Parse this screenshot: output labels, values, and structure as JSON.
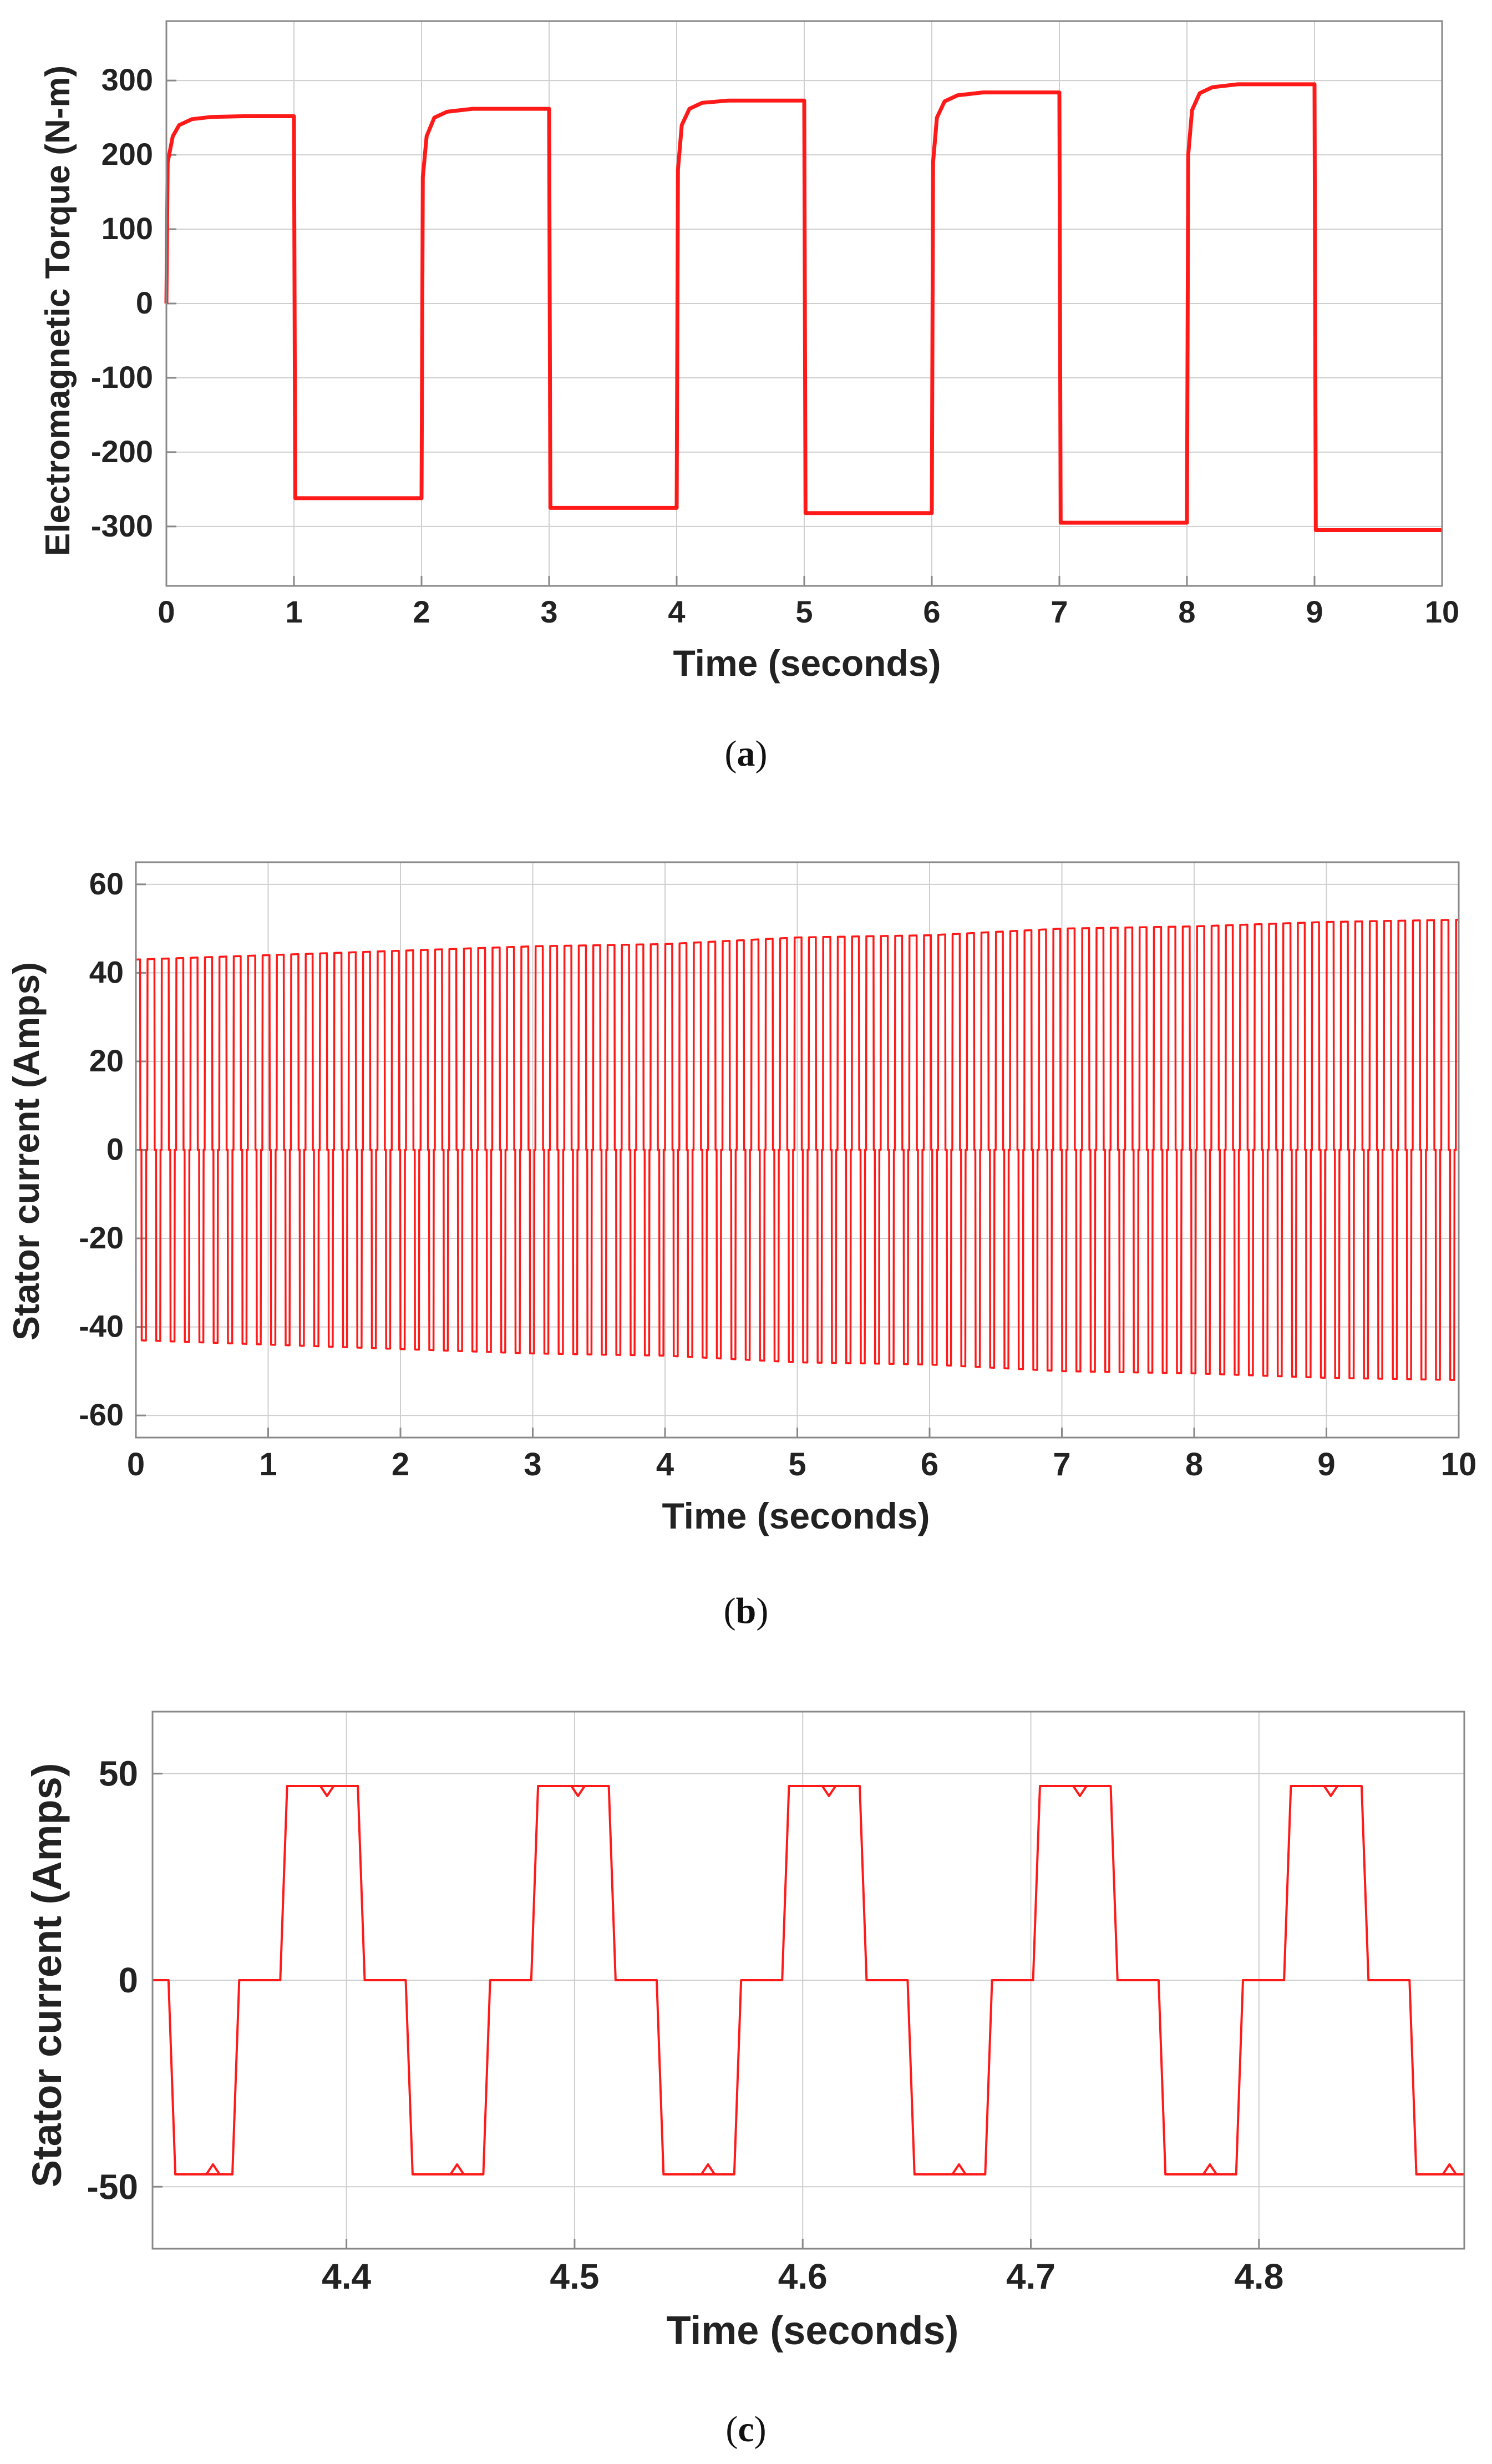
{
  "colors": {
    "trace": "#ff1a1a"
  },
  "chart_data": [
    {
      "type": "line",
      "caption_letter": "a",
      "xlabel": "Time (seconds)",
      "ylabel": "Electromagnetic Torque (N-m)",
      "xlim": [
        0,
        10
      ],
      "ylim": [
        -380,
        380
      ],
      "xticks": [
        0,
        1,
        2,
        3,
        4,
        5,
        6,
        7,
        8,
        9,
        10
      ],
      "yticks": [
        300,
        200,
        100,
        0,
        -100,
        -200,
        -300
      ],
      "grid": true,
      "series": [
        {
          "name": "Electromagnetic Torque",
          "x": [
            0,
            0.01,
            0.05,
            0.1,
            0.2,
            0.35,
            0.6,
            1.0,
            1.01,
            2.0,
            2.01,
            2.04,
            2.1,
            2.2,
            2.4,
            3.0,
            3.01,
            4.0,
            4.01,
            4.04,
            4.1,
            4.2,
            4.4,
            5.0,
            5.01,
            6.0,
            6.01,
            6.04,
            6.1,
            6.2,
            6.4,
            7.0,
            7.01,
            8.0,
            8.01,
            8.04,
            8.1,
            8.2,
            8.4,
            9.0,
            9.01,
            10.0
          ],
          "y": [
            0,
            190,
            225,
            240,
            248,
            251,
            252,
            252,
            -262,
            -262,
            170,
            225,
            250,
            258,
            262,
            262,
            -275,
            -275,
            180,
            240,
            262,
            270,
            273,
            273,
            -282,
            -282,
            190,
            250,
            272,
            280,
            284,
            284,
            -295,
            -295,
            200,
            260,
            283,
            291,
            295,
            295,
            -305,
            -305
          ]
        }
      ]
    },
    {
      "type": "line",
      "caption_letter": "b",
      "xlabel": "Time (seconds)",
      "ylabel": "Stator current (Amps)",
      "xlim": [
        0,
        10
      ],
      "ylim": [
        -65,
        65
      ],
      "xticks": [
        0,
        1,
        2,
        3,
        4,
        5,
        6,
        7,
        8,
        9,
        10
      ],
      "yticks": [
        60,
        40,
        20,
        0,
        -20,
        -40,
        -60
      ],
      "grid": true,
      "waveform": "six-step quasi-square",
      "frequency_hz": 9.2,
      "series": [
        {
          "name": "Stator current",
          "x": [
            0,
            1,
            2,
            3,
            4,
            5,
            6,
            7,
            8,
            9,
            10
          ],
          "y_amplitude": [
            43,
            44,
            45,
            46,
            46.5,
            48,
            48.5,
            50,
            50.5,
            51.5,
            52
          ]
        }
      ]
    },
    {
      "type": "line",
      "caption_letter": "c",
      "xlabel": "Time (seconds)",
      "ylabel": "Stator current (Amps)",
      "xlim": [
        4.315,
        4.89
      ],
      "ylim": [
        -65,
        65
      ],
      "xticks": [
        "4.4",
        "4.5",
        "4.6",
        "4.7",
        "4.8"
      ],
      "yticks": [
        "50",
        "0",
        "-50"
      ],
      "grid": true,
      "waveform": "six-step quasi-square",
      "period_s": 0.1095,
      "amplitude": 47,
      "series": [
        {
          "name": "Stator current",
          "x": [
            4.315,
            4.322,
            4.325,
            4.35,
            4.353,
            4.371,
            4.374,
            4.405,
            4.408,
            4.426,
            4.429,
            4.46,
            4.463,
            4.481,
            4.484,
            4.515,
            4.518,
            4.536,
            4.539,
            4.57,
            4.573,
            4.591,
            4.594,
            4.625,
            4.628,
            4.646,
            4.649,
            4.68,
            4.683,
            4.701,
            4.704,
            4.735,
            4.738,
            4.756,
            4.759,
            4.79,
            4.793,
            4.811,
            4.814,
            4.845,
            4.848,
            4.866,
            4.869,
            4.89
          ],
          "y": [
            0,
            0,
            -47,
            -47,
            0,
            0,
            47,
            47,
            0,
            0,
            -47,
            -47,
            0,
            0,
            47,
            47,
            0,
            0,
            -47,
            -47,
            0,
            0,
            47,
            47,
            0,
            0,
            -47,
            -47,
            0,
            0,
            47,
            47,
            0,
            0,
            -47,
            -47,
            0,
            0,
            47,
            47,
            0,
            0,
            -47,
            -47
          ]
        }
      ]
    }
  ]
}
